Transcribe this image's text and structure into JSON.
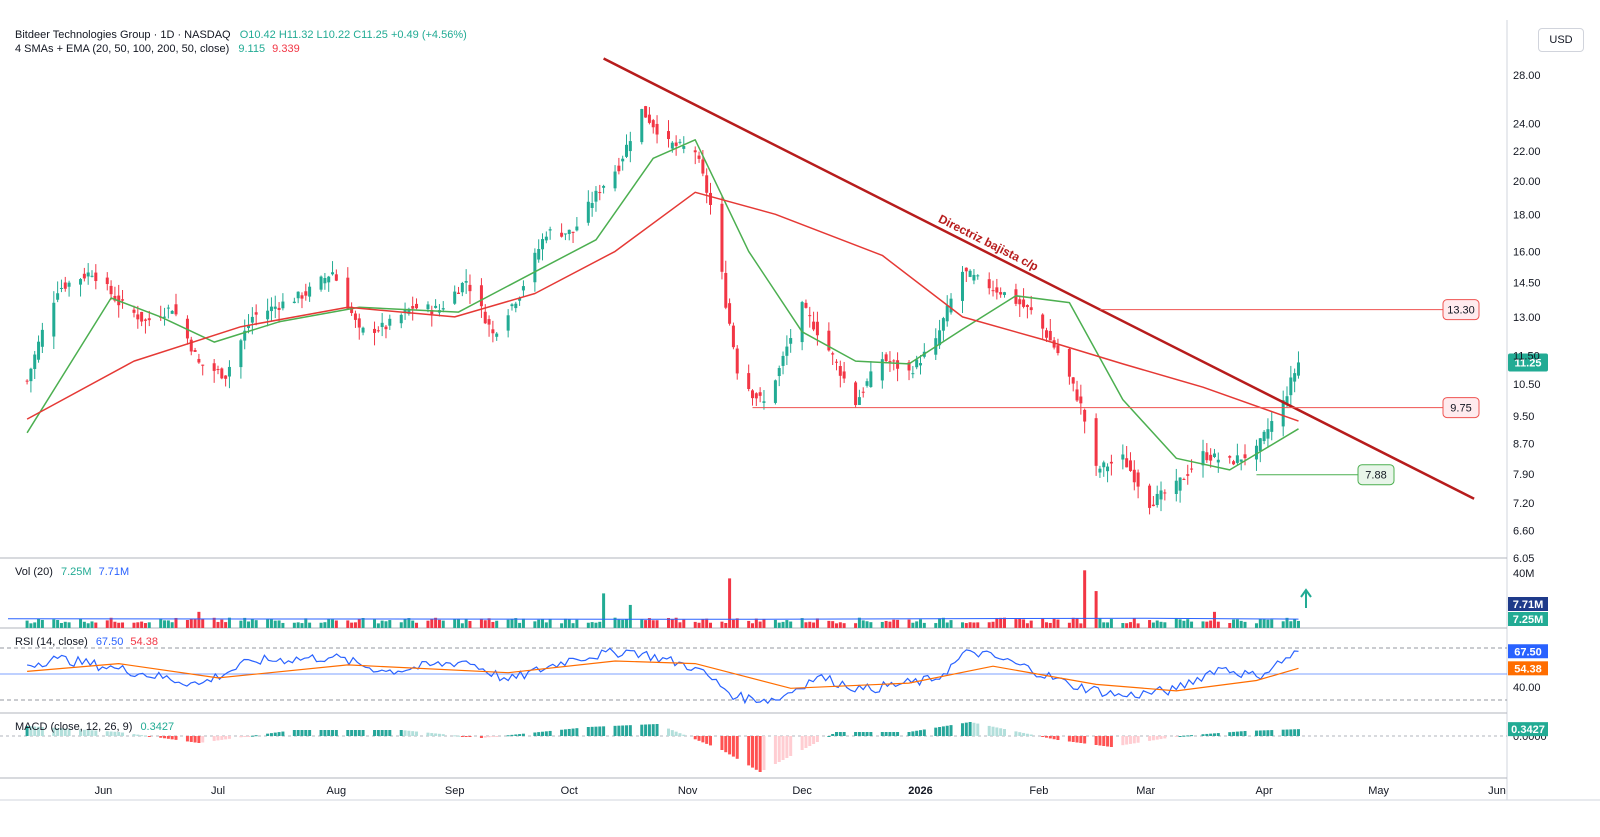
{
  "header": {
    "title": "Bitdeer Technologies Group · 1D · NASDAQ",
    "ohlc": "O10.42  H11.32  L10.22  C11.25  +0.49 (+4.56%)",
    "ma_label": "4 SMAs + EMA (20, 50, 100, 200, 50, close)",
    "ma_v1": "9.115",
    "ma_v2": "9.339",
    "vol_label": "Vol (20)",
    "vol_v1": "7.25M",
    "vol_v2": "7.71M",
    "rsi_label": "RSI (14, close)",
    "rsi_v1": "67.50",
    "rsi_v2": "54.38",
    "macd_label": "MACD (close, 12, 26, 9)",
    "macd_v1": "0.3427"
  },
  "currency_button": "USD",
  "colors": {
    "up": "#22ab94",
    "down": "#f23645",
    "sma": "#4caf50",
    "ema": "#e53935",
    "trendline": "#b71c1c",
    "rsi": "#2962ff",
    "rsi_ma": "#ff6d00"
  },
  "chart_data": [
    {
      "type": "candlestick",
      "title": "Bitdeer Technologies Group · 1D · NASDAQ",
      "x_tick_labels": [
        "Jun",
        "Jul",
        "Aug",
        "Sep",
        "Oct",
        "Nov",
        "Dec",
        "2026",
        "Feb",
        "Mar",
        "Apr",
        "May",
        "Jun"
      ],
      "y_tick_labels": [
        "28.00",
        "24.00",
        "22.00",
        "20.00",
        "18.00",
        "16.00",
        "14.50",
        "13.00",
        "11.50",
        "10.50",
        "9.50",
        "8.70",
        "7.90",
        "7.20",
        "6.60",
        "6.05"
      ],
      "y_scale": "log",
      "ylim": [
        6.05,
        31.0
      ],
      "last_close": 11.25,
      "price_path": [
        [
          "2025-05-12",
          10.6
        ],
        [
          "2025-05-20",
          14.2
        ],
        [
          "2025-05-29",
          15.0
        ],
        [
          "2025-06-05",
          13.6
        ],
        [
          "2025-06-12",
          12.8
        ],
        [
          "2025-06-19",
          13.4
        ],
        [
          "2025-06-26",
          11.2
        ],
        [
          "2025-07-03",
          10.8
        ],
        [
          "2025-07-10",
          13.0
        ],
        [
          "2025-07-17",
          13.5
        ],
        [
          "2025-07-24",
          14.0
        ],
        [
          "2025-07-31",
          15.0
        ],
        [
          "2025-08-07",
          12.4
        ],
        [
          "2025-08-14",
          12.6
        ],
        [
          "2025-08-21",
          13.4
        ],
        [
          "2025-08-28",
          13.3
        ],
        [
          "2025-09-04",
          14.6
        ],
        [
          "2025-09-11",
          12.3
        ],
        [
          "2025-09-18",
          14.0
        ],
        [
          "2025-09-25",
          17.0
        ],
        [
          "2025-10-02",
          17.0
        ],
        [
          "2025-10-09",
          19.5
        ],
        [
          "2025-10-14",
          21.0
        ],
        [
          "2025-10-20",
          25.0
        ],
        [
          "2025-10-27",
          22.5
        ],
        [
          "2025-11-03",
          22.0
        ],
        [
          "2025-11-07",
          18.5
        ],
        [
          "2025-11-11",
          13.6
        ],
        [
          "2025-11-14",
          11.0
        ],
        [
          "2025-11-18",
          10.2
        ],
        [
          "2025-11-21",
          9.9
        ],
        [
          "2025-11-25",
          11.0
        ],
        [
          "2025-12-01",
          13.4
        ],
        [
          "2025-12-08",
          11.7
        ],
        [
          "2025-12-15",
          9.9
        ],
        [
          "2025-12-22",
          11.4
        ],
        [
          "2025-12-29",
          10.9
        ],
        [
          "2026-01-05",
          12.0
        ],
        [
          "2026-01-12",
          15.0
        ],
        [
          "2026-01-16",
          14.6
        ],
        [
          "2026-01-23",
          14.0
        ],
        [
          "2026-01-30",
          13.2
        ],
        [
          "2026-02-06",
          11.6
        ],
        [
          "2026-02-12",
          9.8
        ],
        [
          "2026-02-16",
          8.0
        ],
        [
          "2026-02-23",
          8.3
        ],
        [
          "2026-03-02",
          7.2
        ],
        [
          "2026-03-09",
          7.6
        ],
        [
          "2026-03-16",
          8.4
        ],
        [
          "2026-03-23",
          8.2
        ],
        [
          "2026-03-30",
          8.5
        ],
        [
          "2026-04-06",
          9.9
        ],
        [
          "2026-04-10",
          11.25
        ]
      ],
      "series": [
        {
          "name": "SMA 20",
          "values": [
            [
              "2025-05-12",
              9.0
            ],
            [
              "2025-06-03",
              13.8
            ],
            [
              "2025-06-16",
              13.0
            ],
            [
              "2025-06-30",
              12.0
            ],
            [
              "2025-07-17",
              12.8
            ],
            [
              "2025-08-07",
              13.4
            ],
            [
              "2025-09-02",
              13.2
            ],
            [
              "2025-09-22",
              15.0
            ],
            [
              "2025-10-08",
              16.6
            ],
            [
              "2025-10-23",
              21.5
            ],
            [
              "2025-11-03",
              22.8
            ],
            [
              "2025-11-17",
              16.0
            ],
            [
              "2025-12-01",
              12.4
            ],
            [
              "2025-12-15",
              11.3
            ],
            [
              "2025-12-29",
              11.2
            ],
            [
              "2026-01-12",
              12.5
            ],
            [
              "2026-01-26",
              13.9
            ],
            [
              "2026-02-09",
              13.6
            ],
            [
              "2026-02-23",
              10.0
            ],
            [
              "2026-03-09",
              8.3
            ],
            [
              "2026-03-23",
              8.0
            ],
            [
              "2026-04-10",
              9.115
            ]
          ]
        },
        {
          "name": "EMA 50",
          "values": [
            [
              "2025-05-12",
              9.4
            ],
            [
              "2025-06-09",
              11.3
            ],
            [
              "2025-07-07",
              12.6
            ],
            [
              "2025-08-04",
              13.4
            ],
            [
              "2025-09-01",
              13.0
            ],
            [
              "2025-09-22",
              14.0
            ],
            [
              "2025-10-13",
              16.0
            ],
            [
              "2025-11-03",
              19.3
            ],
            [
              "2025-11-24",
              18.0
            ],
            [
              "2025-12-22",
              15.8
            ],
            [
              "2026-01-12",
              13.0
            ],
            [
              "2026-02-02",
              12.1
            ],
            [
              "2026-02-23",
              11.2
            ],
            [
              "2026-03-16",
              10.4
            ],
            [
              "2026-04-10",
              9.339
            ]
          ]
        }
      ],
      "annotations": [
        {
          "text": "Directriz bajista c/p",
          "type": "trendline",
          "from": [
            "2025-10-10",
            29.5
          ],
          "to": [
            "2026-05-26",
            7.3
          ]
        },
        {
          "text": "13.30",
          "type": "horizontal_line",
          "y": 13.3
        },
        {
          "text": "9.75",
          "type": "horizontal_line",
          "y": 9.75
        },
        {
          "text": "7.88",
          "type": "horizontal_line",
          "y": 7.88
        },
        {
          "text": "11.25",
          "type": "price_label",
          "y": 11.25
        }
      ]
    },
    {
      "type": "bar",
      "title": "Vol (20)",
      "y_tick_labels": [
        "40M"
      ],
      "values_labels": [
        "7.71M",
        "7.25M"
      ],
      "spikes": [
        [
          "2025-06-26",
          14
        ],
        [
          "2025-10-10",
          30
        ],
        [
          "2025-10-17",
          20
        ],
        [
          "2025-11-12",
          43
        ],
        [
          "2026-02-13",
          50
        ],
        [
          "2026-02-16",
          32
        ],
        [
          "2026-03-19",
          14
        ]
      ]
    },
    {
      "type": "line",
      "title": "RSI (14, close)",
      "y_tick_labels": [
        "40.00"
      ],
      "series": [
        {
          "name": "RSI",
          "last": 67.5,
          "values": [
            [
              "2025-05-12",
              57
            ],
            [
              "2025-05-20",
              62
            ],
            [
              "2025-06-05",
              54
            ],
            [
              "2025-06-26",
              42
            ],
            [
              "2025-07-10",
              60
            ],
            [
              "2025-07-31",
              63
            ],
            [
              "2025-08-14",
              52
            ],
            [
              "2025-09-04",
              60
            ],
            [
              "2025-09-15",
              45
            ],
            [
              "2025-10-02",
              62
            ],
            [
              "2025-10-17",
              68
            ],
            [
              "2025-11-03",
              55
            ],
            [
              "2025-11-14",
              32
            ],
            [
              "2025-11-24",
              30
            ],
            [
              "2025-12-05",
              48
            ],
            [
              "2025-12-17",
              38
            ],
            [
              "2026-01-05",
              46
            ],
            [
              "2026-01-14",
              68
            ],
            [
              "2026-01-26",
              58
            ],
            [
              "2026-02-09",
              42
            ],
            [
              "2026-02-23",
              33
            ],
            [
              "2026-03-09",
              38
            ],
            [
              "2026-03-20",
              55
            ],
            [
              "2026-03-30",
              48
            ],
            [
              "2026-04-10",
              67.5
            ]
          ]
        },
        {
          "name": "RSI MA",
          "last": 54.38,
          "values": [
            [
              "2025-05-12",
              52
            ],
            [
              "2025-06-05",
              58
            ],
            [
              "2025-07-01",
              47
            ],
            [
              "2025-08-04",
              57
            ],
            [
              "2025-09-15",
              51
            ],
            [
              "2025-10-13",
              60
            ],
            [
              "2025-11-03",
              58
            ],
            [
              "2025-11-28",
              39
            ],
            [
              "2025-12-29",
              43
            ],
            [
              "2026-01-20",
              56
            ],
            [
              "2026-02-16",
              42
            ],
            [
              "2026-03-09",
              37
            ],
            [
              "2026-03-30",
              45
            ],
            [
              "2026-04-10",
              54.38
            ]
          ]
        }
      ]
    },
    {
      "type": "bar",
      "title": "MACD (close, 12, 26, 9)",
      "y_tick_labels": [
        "0.0000"
      ],
      "values_labels": [
        "0.3427"
      ],
      "histogram": [
        [
          "2025-05-12",
          0.5
        ],
        [
          "2025-06-05",
          0.2
        ],
        [
          "2025-06-26",
          -0.35
        ],
        [
          "2025-07-21",
          0.3
        ],
        [
          "2025-08-18",
          0.3
        ],
        [
          "2025-09-08",
          -0.1
        ],
        [
          "2025-10-06",
          0.45
        ],
        [
          "2025-10-24",
          0.6
        ],
        [
          "2025-11-10",
          -0.7
        ],
        [
          "2025-11-20",
          -1.8
        ],
        [
          "2025-12-10",
          0.2
        ],
        [
          "2025-12-29",
          0.2
        ],
        [
          "2026-01-14",
          0.7
        ],
        [
          "2026-02-06",
          -0.2
        ],
        [
          "2026-02-20",
          -0.55
        ],
        [
          "2026-03-10",
          0.0
        ],
        [
          "2026-03-27",
          0.25
        ],
        [
          "2026-04-10",
          0.3427
        ]
      ]
    }
  ]
}
